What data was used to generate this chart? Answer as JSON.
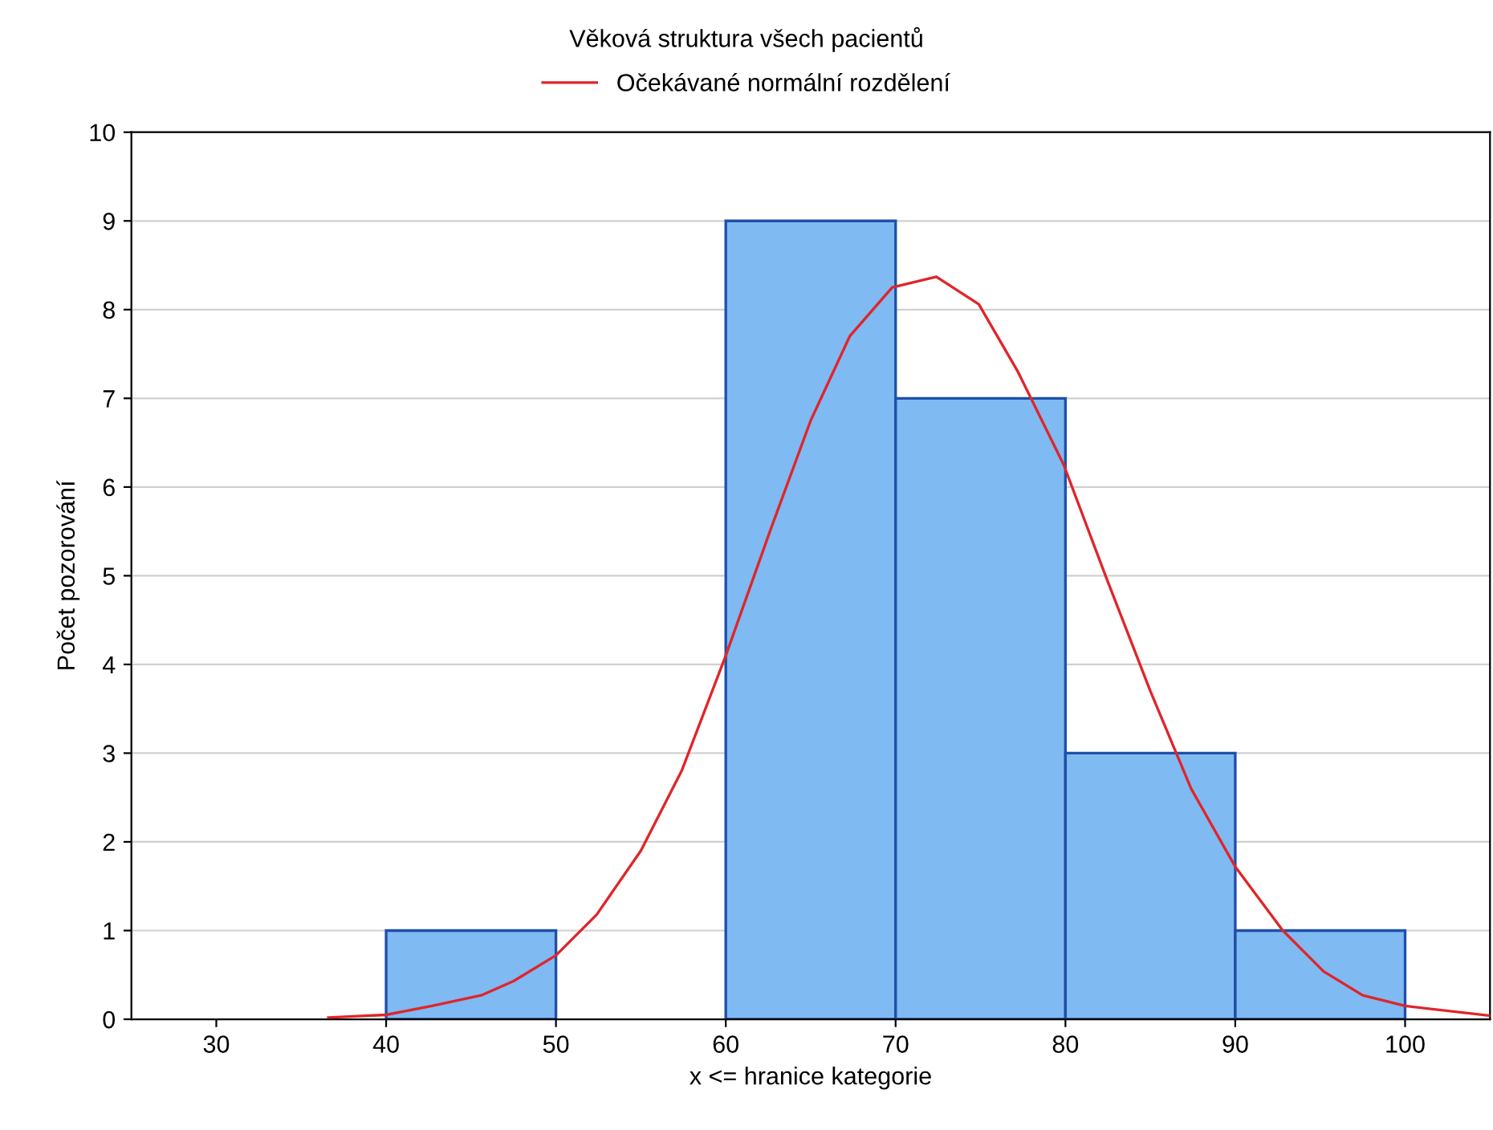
{
  "chart_data": {
    "type": "histogram",
    "title": "Věková struktura všech pacientů",
    "xlabel": "x <= hranice kategorie",
    "ylabel": "Počet pozorování",
    "bins": [
      40,
      50,
      60,
      70,
      80,
      90,
      100
    ],
    "values": [
      1,
      0,
      9,
      7,
      3,
      1
    ],
    "color": "#7fbaf2",
    "series": [
      {
        "type": "line",
        "name": "Očekávané normální rozdělení",
        "color": "#e0252a",
        "x": [
          36.6,
          40,
          42.7,
          45.6,
          47.5,
          50,
          52.4,
          55,
          57.4,
          60,
          62.6,
          65,
          67.3,
          69.8,
          72.4,
          74.9,
          77.2,
          79.9,
          82.4,
          85,
          87.4,
          90,
          92.8,
          95.2,
          97.5,
          100,
          105
        ],
        "values": [
          0.02,
          0.05,
          0.15,
          0.27,
          0.43,
          0.72,
          1.18,
          1.9,
          2.8,
          4.1,
          5.5,
          6.75,
          7.7,
          8.25,
          8.37,
          8.06,
          7.3,
          6.25,
          4.98,
          3.7,
          2.6,
          1.72,
          1.0,
          0.54,
          0.27,
          0.15,
          0.04
        ]
      }
    ],
    "xlim": [
      25,
      105
    ],
    "xticks": [
      30,
      40,
      50,
      60,
      70,
      80,
      90,
      100
    ],
    "ylim": [
      0,
      10
    ],
    "yticks": [
      0,
      1,
      2,
      3,
      4,
      5,
      6,
      7,
      8,
      9,
      10
    ],
    "grid": "y",
    "legend": "top"
  }
}
